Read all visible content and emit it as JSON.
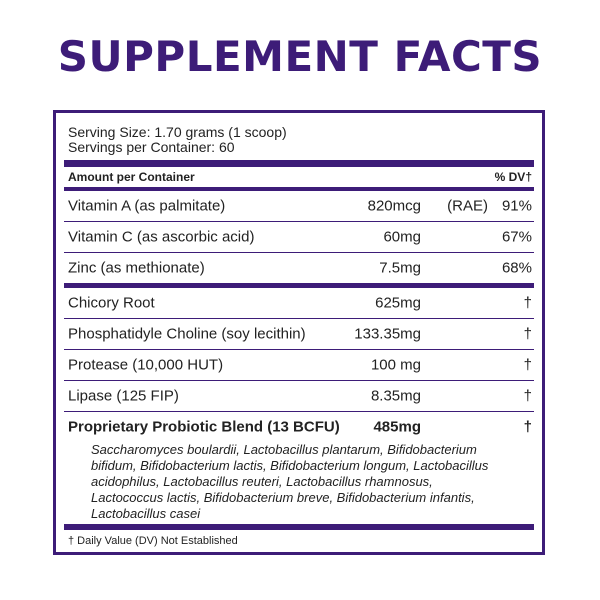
{
  "header": {
    "title": "SUPPLEMENT FACTS"
  },
  "serving": {
    "size": "Serving Size: 1.70 grams (1 scoop)",
    "per_container": "Servings per Container: 60"
  },
  "columns": {
    "amount": "Amount per Container",
    "dv": "% DV†"
  },
  "vitamins": [
    {
      "name": "Vitamin A (as palmitate)",
      "amount": "820mcg",
      "note": "(RAE)",
      "dv": "91%"
    },
    {
      "name": "Vitamin C (as ascorbic acid)",
      "amount": "60mg",
      "dv": "67%"
    },
    {
      "name": "Zinc (as methionate)",
      "amount": "7.5mg",
      "dv": "68%"
    }
  ],
  "ingredients": [
    {
      "name": "Chicory Root",
      "amount": "625mg",
      "dv": "†"
    },
    {
      "name": "Phosphatidyle Choline (soy lecithin)",
      "amount": "133.35mg",
      "dv": "†"
    },
    {
      "name": "Protease (10,000 HUT)",
      "amount": "100 mg",
      "dv": "†"
    },
    {
      "name": "Lipase (125 FIP)",
      "amount": "8.35mg",
      "dv": "†"
    },
    {
      "name": "Proprietary Probiotic Blend (13 BCFU)",
      "amount": "485mg",
      "dv": "†",
      "bold": true
    }
  ],
  "blend_lines": [
    "Saccharomyces boulardii, Lactobacillus plantarum, Bifidobacterium",
    "bifidum, Bifidobacterium lactis, Bifidobacterium longum, Lactobacillus",
    "acidophilus, Lactobacillus reuteri, Lactobacillus rhamnosus,",
    "Lactococcus lactis, Bifidobacterium breve, Bifidobacterium infantis,",
    "Lactobacillus casei"
  ],
  "footnote": "† Daily Value (DV) Not Established"
}
